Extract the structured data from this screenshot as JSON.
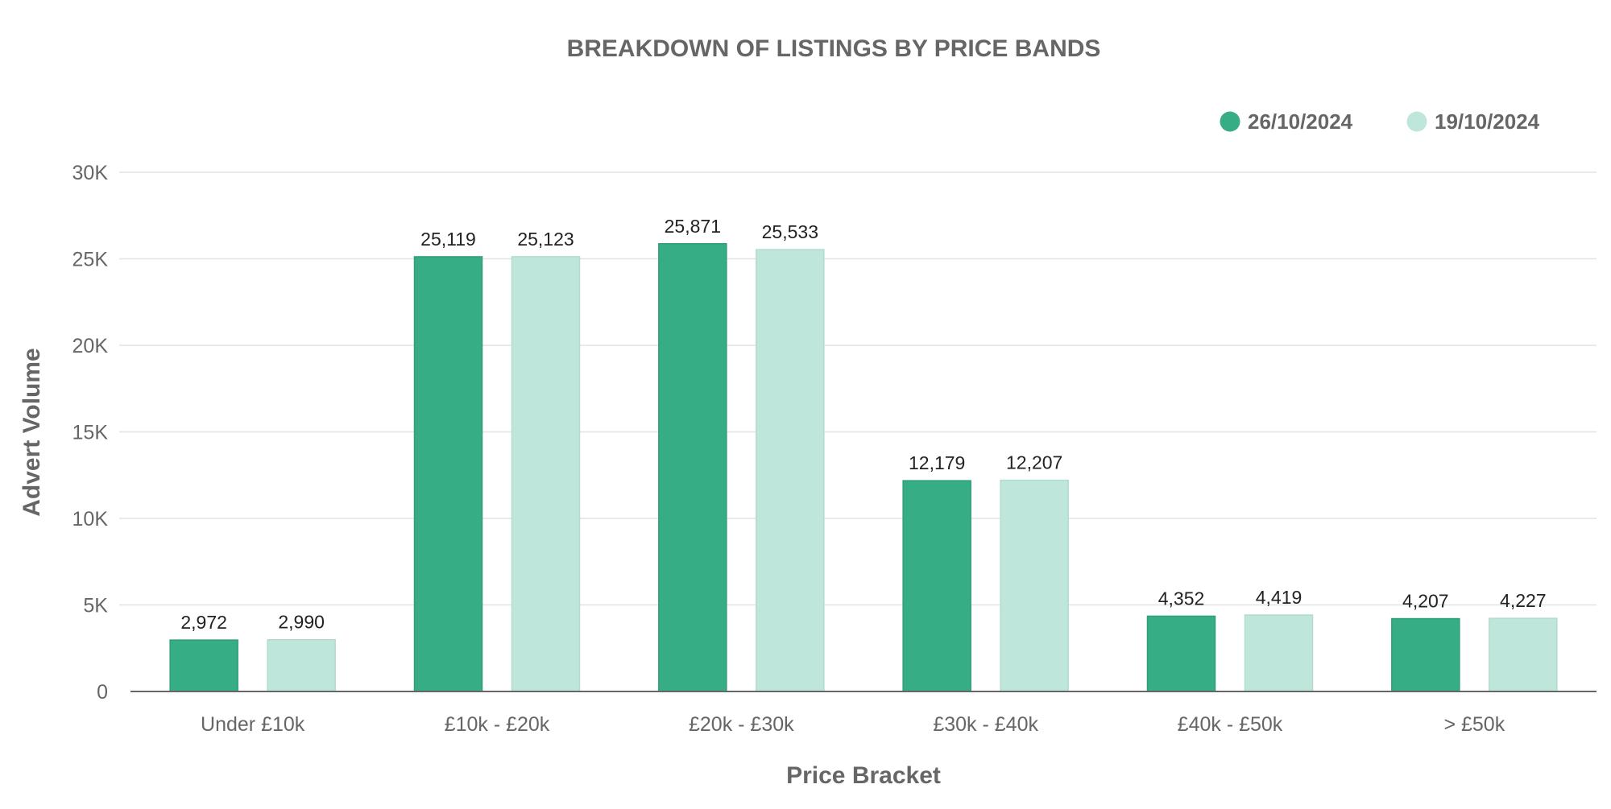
{
  "chart_data": {
    "type": "bar",
    "title": "BREAKDOWN OF LISTINGS BY PRICE BANDS",
    "xlabel": "Price Bracket",
    "ylabel": "Advert Volume",
    "categories": [
      "Under £10k",
      "£10k - £20k",
      "£20k - £30k",
      "£30k - £40k",
      "£40k - £50k",
      "> £50k"
    ],
    "series": [
      {
        "name": "26/10/2024",
        "color": "#37ad86",
        "values": [
          2972,
          25119,
          25871,
          12179,
          4352,
          4207
        ],
        "labels": [
          "2,972",
          "25,119",
          "25,871",
          "12,179",
          "4,352",
          "4,207"
        ]
      },
      {
        "name": "19/10/2024",
        "color": "#bfe6da",
        "values": [
          2990,
          25123,
          25533,
          12207,
          4419,
          4227
        ],
        "labels": [
          "2,990",
          "25,123",
          "25,533",
          "12,207",
          "4,419",
          "4,227"
        ]
      }
    ],
    "ylim": [
      0,
      30000
    ],
    "yticks": [
      0,
      5000,
      10000,
      15000,
      20000,
      25000,
      30000
    ],
    "ytick_labels": [
      "0",
      "5K",
      "10K",
      "15K",
      "20K",
      "25K",
      "30K"
    ],
    "grid": true,
    "legend_position": "top-right"
  }
}
